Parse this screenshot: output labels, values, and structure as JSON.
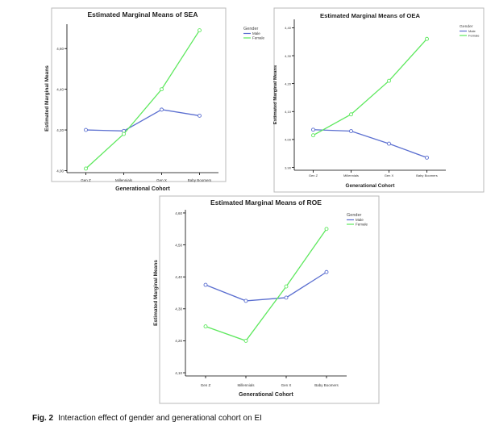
{
  "caption": {
    "label": "Fig. 2",
    "text": "Interaction effect of gender and generational cohort on EI"
  },
  "colors": {
    "male": "#5b6fd0",
    "female": "#5ee85e",
    "axis": "#000000",
    "frame": "#b8b8b8"
  },
  "chart_data": [
    {
      "type": "line",
      "title": "Estimated Marginal Means of SEA",
      "xlabel": "Generational Cohort",
      "ylabel": "Estimated Marginal Means",
      "categories": [
        "Gen Z",
        "Millennials",
        "Gen X",
        "Baby Boomers"
      ],
      "yticks": [
        "4,00",
        "4,20",
        "4,40",
        "4,60"
      ],
      "ylim": [
        3.99,
        4.72
      ],
      "legend_title": "Gender",
      "legend_position": "top-right",
      "series": [
        {
          "name": "Male",
          "values": [
            4.2,
            4.195,
            4.3,
            4.27
          ]
        },
        {
          "name": "Female",
          "values": [
            4.01,
            4.18,
            4.4,
            4.69
          ]
        }
      ]
    },
    {
      "type": "line",
      "title": "Estimated Marginal Means of OEA",
      "xlabel": "Generational Cohort",
      "ylabel": "Estimated Marginal Means",
      "categories": [
        "Gen Z",
        "Millennials",
        "Gen X",
        "Baby Boomers"
      ],
      "yticks": [
        "3,90",
        "4,00",
        "4,10",
        "4,20",
        "4,30",
        "4,40"
      ],
      "ylim": [
        3.89,
        4.43
      ],
      "legend_title": "Gender",
      "legend_position": "top-right",
      "series": [
        {
          "name": "Male",
          "values": [
            4.035,
            4.03,
            3.985,
            3.935
          ]
        },
        {
          "name": "Female",
          "values": [
            4.015,
            4.09,
            4.21,
            4.36
          ]
        }
      ]
    },
    {
      "type": "line",
      "title": "Estimated Marginal Means of ROE",
      "xlabel": "Generational Cohort",
      "ylabel": "Estimated Marginal Means",
      "categories": [
        "Gen Z",
        "Millennials",
        "Gen X",
        "Baby Boomers"
      ],
      "yticks": [
        "4,10",
        "4,20",
        "4,30",
        "4,40",
        "4,50",
        "4,60"
      ],
      "ylim": [
        4.09,
        4.61
      ],
      "legend_title": "Gender",
      "legend_position": "top-right",
      "series": [
        {
          "name": "Male",
          "values": [
            4.375,
            4.325,
            4.335,
            4.415
          ]
        },
        {
          "name": "Female",
          "values": [
            4.245,
            4.2,
            4.37,
            4.55
          ]
        }
      ]
    }
  ]
}
